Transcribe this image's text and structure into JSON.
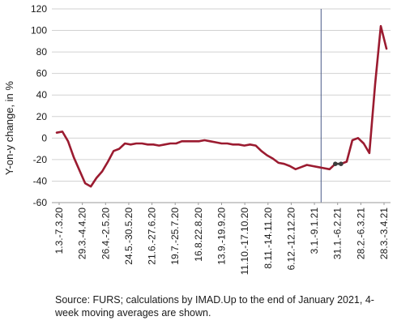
{
  "chart_data": {
    "type": "line",
    "ylabel": "Y-on-y change, in %",
    "xlabel": "",
    "ylim": [
      -60,
      120
    ],
    "yticks": [
      120,
      100,
      80,
      60,
      40,
      20,
      0,
      -20,
      -40,
      -60
    ],
    "grid": true,
    "legend": "none",
    "line_color": "#9b1b30",
    "marker_color": "#3c3c3c",
    "vline_color": "#4a5a88",
    "vline_after_point": 46,
    "x_tick_labels": [
      "1.3.-7.3.20",
      "29.3.-4.4.20",
      "26.4.-2.5.20",
      "24.5.-30.5.20",
      "21.6.-27.6.20",
      "19.7.-25.7.20",
      "16.8.22.8.20",
      "13.9.-19.9.20",
      "11.10.-17.10.20",
      "8.11.-14.11.20",
      "6.12.-12.12.20",
      "3.1.-9.1.21",
      "31.1.-6.2.21",
      "28.2.-6.3.21",
      "28.3.-3.4.21"
    ],
    "series": [
      {
        "values": [
          5,
          6,
          -3,
          -18,
          -30,
          -42,
          -45,
          -37,
          -31,
          -22,
          -12,
          -10,
          -5,
          -6,
          -5,
          -5,
          -6,
          -6,
          -7,
          -6,
          -5,
          -5,
          -3,
          -3,
          -3,
          -3,
          -2,
          -3,
          -4,
          -5,
          -5,
          -6,
          -6,
          -7,
          -6,
          -7,
          -12,
          -16,
          -19,
          -23,
          -24,
          -26,
          -29,
          -27,
          -25,
          -26,
          -27,
          -28,
          -29,
          -24,
          -24,
          -22,
          -2,
          0,
          -5,
          -14,
          50,
          104,
          83
        ],
        "markers": [
          49,
          50
        ]
      }
    ]
  },
  "note": "Source: FURS; calculations by IMAD.Up to the end of January 2021, 4-week moving averages are shown."
}
